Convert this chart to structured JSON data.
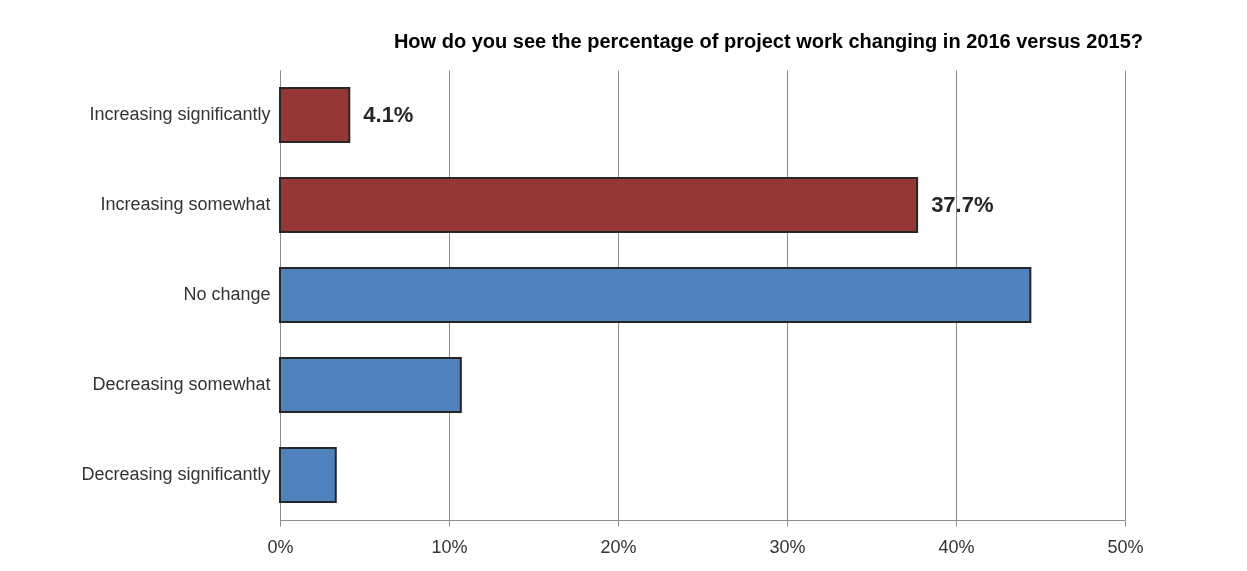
{
  "chart_data": {
    "type": "bar",
    "orientation": "horizontal",
    "title": "How do you see the percentage of project work changing in 2016 versus 2015?",
    "categories": [
      "Increasing significantly",
      "Increasing somewhat",
      "No change",
      "Decreasing somewhat",
      "Decreasing significantly"
    ],
    "values": [
      4.1,
      37.7,
      44.4,
      10.7,
      3.3
    ],
    "colors": [
      "#953735",
      "#953735",
      "#4f81bd",
      "#4f81bd",
      "#4f81bd"
    ],
    "value_labels": [
      "4.1%",
      "37.7%",
      null,
      null,
      null
    ],
    "xlim": [
      0,
      50
    ],
    "xticks": [
      {
        "value": 0,
        "label": "0%"
      },
      {
        "value": 10,
        "label": "10%"
      },
      {
        "value": 20,
        "label": "20%"
      },
      {
        "value": 30,
        "label": "30%"
      },
      {
        "value": 40,
        "label": "40%"
      },
      {
        "value": 50,
        "label": "50%"
      }
    ],
    "grid": "x"
  }
}
